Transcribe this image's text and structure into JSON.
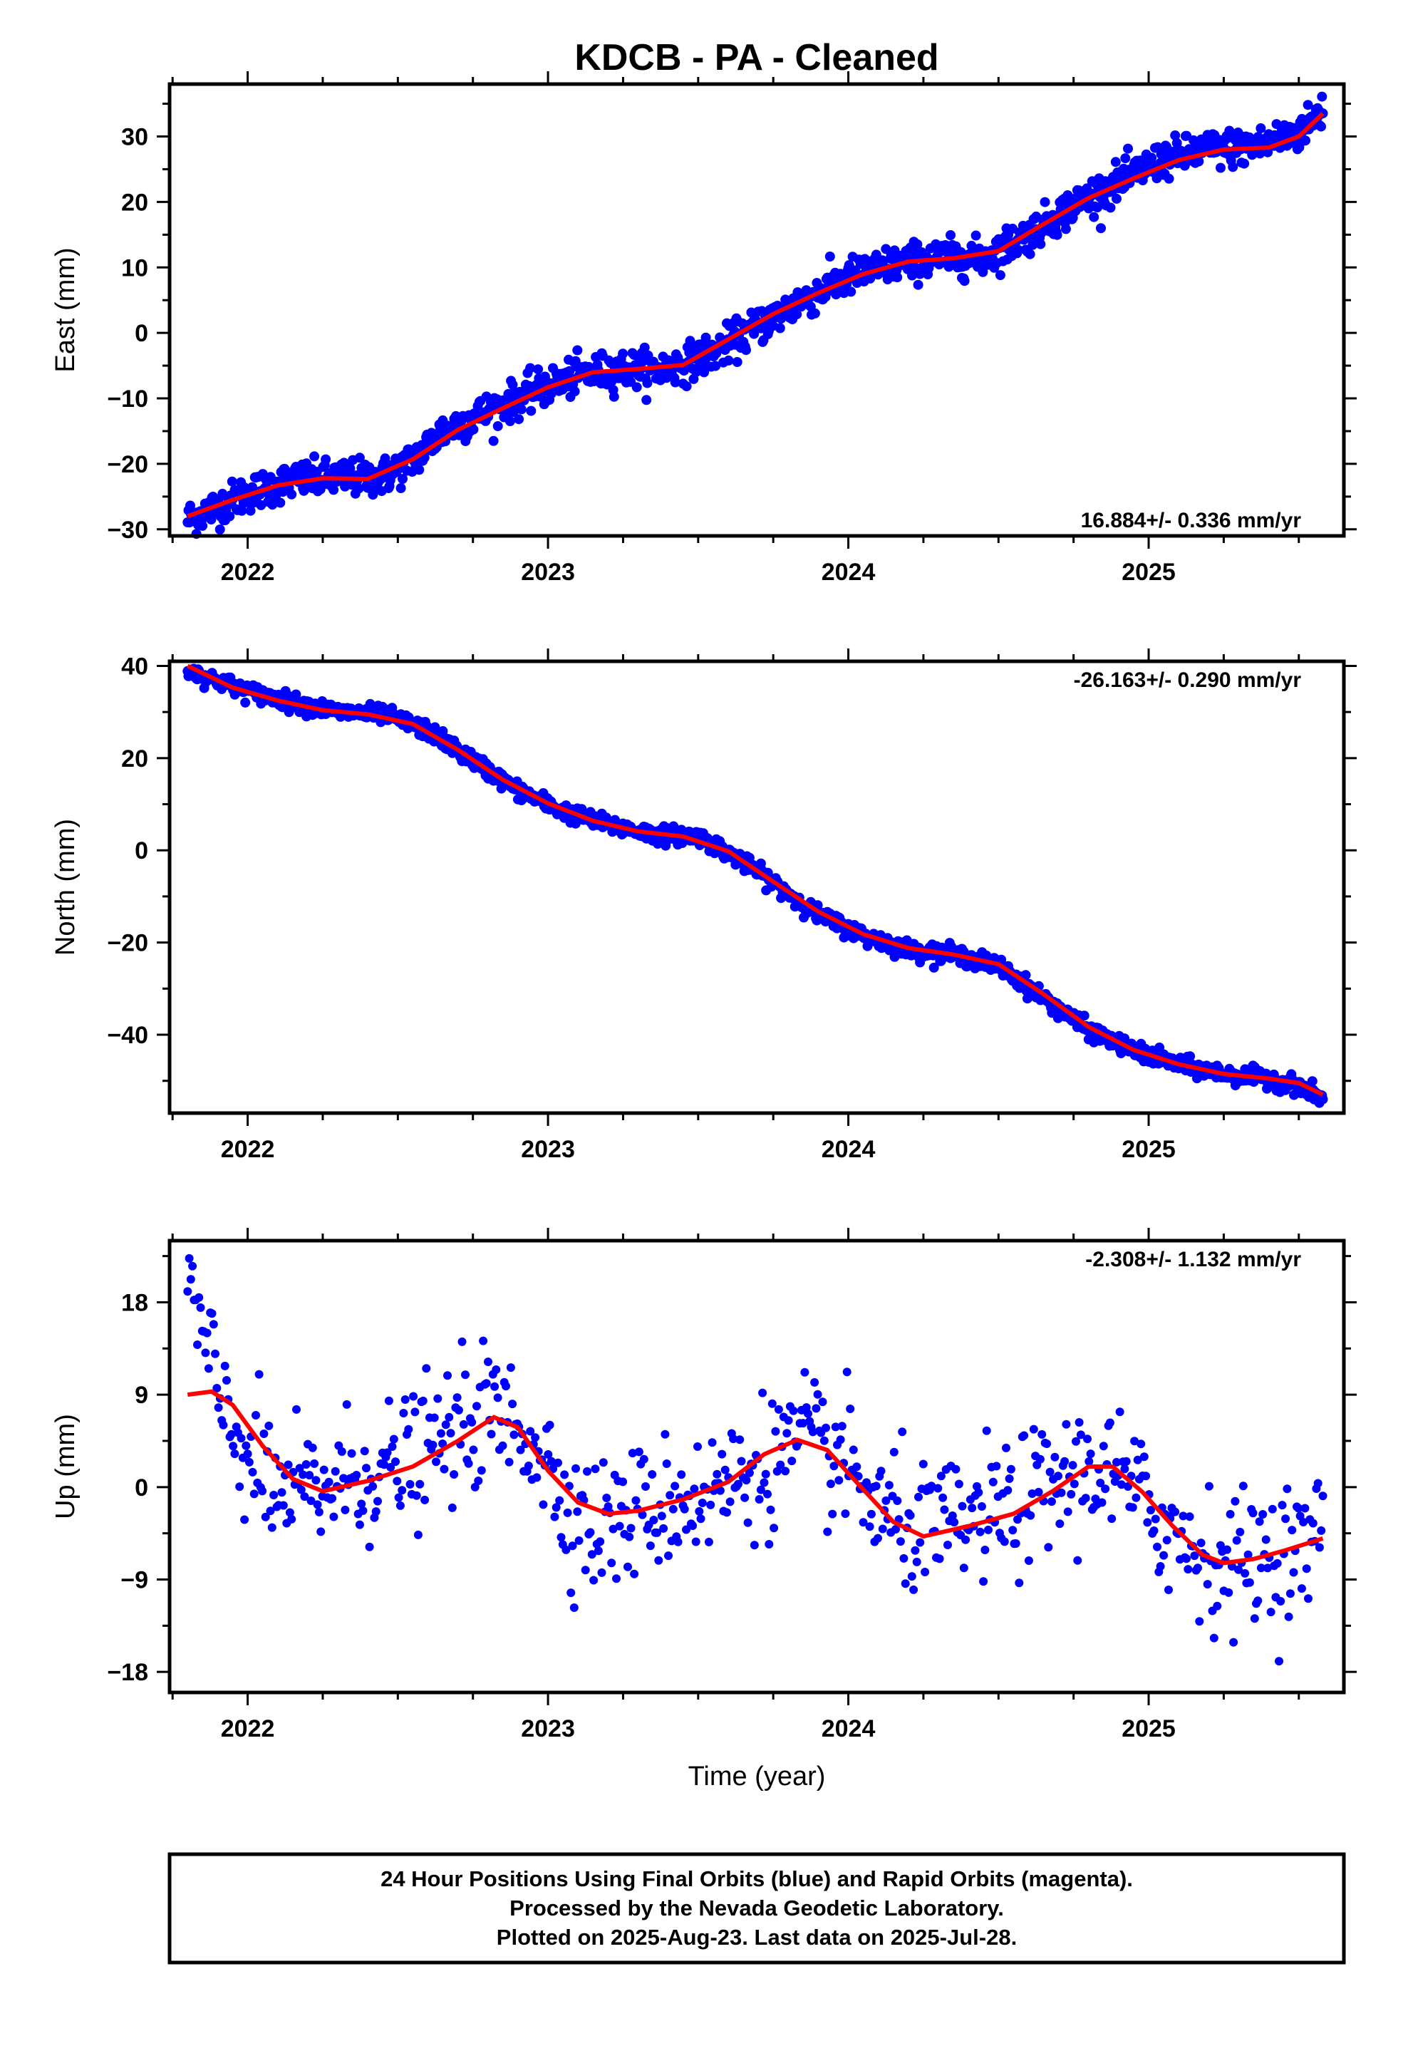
{
  "title": "KDCB  - PA - Cleaned",
  "footer": {
    "lines": [
      "24 Hour Positions Using Final Orbits (blue) and Rapid Orbits (magenta).",
      "Processed by the Nevada Geodetic Laboratory.",
      "Plotted on 2025-Aug-23. Last data on 2025-Jul-28."
    ]
  },
  "colors": {
    "final_orbits": "#0000ff",
    "fit_curve": "#ff0000",
    "axes": "#000000"
  },
  "chart_data": [
    {
      "type": "scatter",
      "component": "east",
      "ylabel": "East (mm)",
      "xlabel": "",
      "xlim": [
        2021.74,
        2025.65
      ],
      "ylim": [
        -31,
        38
      ],
      "xticks": [
        2022,
        2023,
        2024,
        2025
      ],
      "yticks": [
        -30,
        -20,
        -10,
        0,
        10,
        20,
        30
      ],
      "rate_label": "16.884+/- 0.336 mm/yr",
      "rate_position": "bottom-right",
      "noise": 1.4,
      "points": [
        [
          2021.8,
          -28.5
        ],
        [
          2022.0,
          -24.5
        ],
        [
          2022.15,
          -22.5
        ],
        [
          2022.3,
          -22.2
        ],
        [
          2022.45,
          -22.0
        ],
        [
          2022.55,
          -19.5
        ],
        [
          2022.65,
          -15.0
        ],
        [
          2022.8,
          -12.0
        ],
        [
          2022.95,
          -9.0
        ],
        [
          2023.1,
          -6.5
        ],
        [
          2023.25,
          -5.5
        ],
        [
          2023.4,
          -5.5
        ],
        [
          2023.55,
          -3.0
        ],
        [
          2023.7,
          1.0
        ],
        [
          2023.85,
          5.0
        ],
        [
          2024.0,
          8.5
        ],
        [
          2024.15,
          10.5
        ],
        [
          2024.3,
          11.5
        ],
        [
          2024.45,
          11.5
        ],
        [
          2024.6,
          15.0
        ],
        [
          2024.75,
          19.5
        ],
        [
          2024.9,
          23.0
        ],
        [
          2025.05,
          26.5
        ],
        [
          2025.2,
          28.0
        ],
        [
          2025.35,
          28.5
        ],
        [
          2025.5,
          30.5
        ],
        [
          2025.58,
          34.0
        ]
      ],
      "fit": [
        [
          2021.8,
          -28.0
        ],
        [
          2021.95,
          -25.5
        ],
        [
          2022.1,
          -23.3
        ],
        [
          2022.25,
          -22.2
        ],
        [
          2022.4,
          -22.3
        ],
        [
          2022.55,
          -19.3
        ],
        [
          2022.7,
          -14.8
        ],
        [
          2022.85,
          -11.5
        ],
        [
          2023.0,
          -8.3
        ],
        [
          2023.15,
          -6.0
        ],
        [
          2023.3,
          -5.5
        ],
        [
          2023.45,
          -4.9
        ],
        [
          2023.6,
          -1.0
        ],
        [
          2023.75,
          2.9
        ],
        [
          2023.9,
          6.1
        ],
        [
          2024.05,
          9.0
        ],
        [
          2024.2,
          10.9
        ],
        [
          2024.35,
          11.4
        ],
        [
          2024.5,
          12.5
        ],
        [
          2024.65,
          16.6
        ],
        [
          2024.8,
          20.6
        ],
        [
          2024.95,
          23.6
        ],
        [
          2025.1,
          26.4
        ],
        [
          2025.25,
          28.0
        ],
        [
          2025.4,
          28.3
        ],
        [
          2025.5,
          30.0
        ],
        [
          2025.58,
          33.5
        ]
      ]
    },
    {
      "type": "scatter",
      "component": "north",
      "ylabel": "North (mm)",
      "xlabel": "",
      "xlim": [
        2021.74,
        2025.65
      ],
      "ylim": [
        -57,
        41
      ],
      "xticks": [
        2022,
        2023,
        2024,
        2025
      ],
      "yticks": [
        -40,
        -20,
        0,
        20,
        40
      ],
      "rate_label": "-26.163+/- 0.290 mm/yr",
      "rate_position": "top-right",
      "noise": 0.9,
      "points": [
        [
          2021.8,
          39.0
        ],
        [
          2022.0,
          34.5
        ],
        [
          2022.15,
          32.0
        ],
        [
          2022.3,
          30.0
        ],
        [
          2022.45,
          29.5
        ],
        [
          2022.6,
          26.0
        ],
        [
          2022.75,
          19.5
        ],
        [
          2022.9,
          13.0
        ],
        [
          2023.05,
          8.5
        ],
        [
          2023.2,
          5.5
        ],
        [
          2023.35,
          3.5
        ],
        [
          2023.5,
          3.0
        ],
        [
          2023.6,
          -0.5
        ],
        [
          2023.75,
          -7.0
        ],
        [
          2023.9,
          -14.0
        ],
        [
          2024.05,
          -18.5
        ],
        [
          2024.2,
          -21.5
        ],
        [
          2024.35,
          -22.5
        ],
        [
          2024.5,
          -25.0
        ],
        [
          2024.65,
          -32.0
        ],
        [
          2024.8,
          -39.0
        ],
        [
          2024.95,
          -43.5
        ],
        [
          2025.1,
          -46.5
        ],
        [
          2025.25,
          -48.5
        ],
        [
          2025.4,
          -49.5
        ],
        [
          2025.5,
          -51.0
        ],
        [
          2025.58,
          -54.0
        ]
      ],
      "fit": [
        [
          2021.8,
          40.0
        ],
        [
          2021.95,
          35.3
        ],
        [
          2022.1,
          32.5
        ],
        [
          2022.25,
          30.4
        ],
        [
          2022.4,
          29.5
        ],
        [
          2022.55,
          27.4
        ],
        [
          2022.7,
          21.8
        ],
        [
          2022.85,
          15.3
        ],
        [
          2023.0,
          10.2
        ],
        [
          2023.15,
          6.4
        ],
        [
          2023.3,
          4.1
        ],
        [
          2023.45,
          3.0
        ],
        [
          2023.6,
          -0.2
        ],
        [
          2023.75,
          -6.8
        ],
        [
          2023.9,
          -13.3
        ],
        [
          2024.05,
          -18.2
        ],
        [
          2024.2,
          -21.2
        ],
        [
          2024.35,
          -22.6
        ],
        [
          2024.5,
          -24.7
        ],
        [
          2024.65,
          -31.2
        ],
        [
          2024.8,
          -38.3
        ],
        [
          2024.95,
          -43.3
        ],
        [
          2025.1,
          -46.4
        ],
        [
          2025.25,
          -48.5
        ],
        [
          2025.4,
          -49.5
        ],
        [
          2025.5,
          -50.5
        ],
        [
          2025.58,
          -53.0
        ]
      ]
    },
    {
      "type": "scatter",
      "component": "up",
      "ylabel": "Up (mm)",
      "xlabel": "Time (year)",
      "xlim": [
        2021.74,
        2025.65
      ],
      "ylim": [
        -20,
        24
      ],
      "xticks": [
        2022,
        2023,
        2024,
        2025
      ],
      "yticks": [
        -18,
        -9,
        0,
        9,
        18
      ],
      "rate_label": "-2.308+/- 1.132 mm/yr",
      "rate_position": "top-right",
      "noise": 3.2,
      "points": [
        [
          2021.8,
          20.0
        ],
        [
          2021.9,
          9.0
        ],
        [
          2022.0,
          3.0
        ],
        [
          2022.1,
          -1.0
        ],
        [
          2022.2,
          -0.5
        ],
        [
          2022.35,
          1.0
        ],
        [
          2022.5,
          2.0
        ],
        [
          2022.65,
          4.5
        ],
        [
          2022.8,
          7.5
        ],
        [
          2022.95,
          5.0
        ],
        [
          2023.05,
          -1.0
        ],
        [
          2023.15,
          -4.0
        ],
        [
          2023.25,
          -3.0
        ],
        [
          2023.4,
          -1.5
        ],
        [
          2023.55,
          -0.5
        ],
        [
          2023.7,
          2.0
        ],
        [
          2023.85,
          4.5
        ],
        [
          2024.0,
          2.0
        ],
        [
          2024.1,
          -2.5
        ],
        [
          2024.25,
          -4.5
        ],
        [
          2024.4,
          -3.5
        ],
        [
          2024.55,
          -2.0
        ],
        [
          2024.7,
          0.5
        ],
        [
          2024.85,
          2.0
        ],
        [
          2024.95,
          -0.5
        ],
        [
          2025.1,
          -5.0
        ],
        [
          2025.25,
          -7.5
        ],
        [
          2025.4,
          -6.5
        ],
        [
          2025.5,
          -6.0
        ],
        [
          2025.58,
          -5.0
        ]
      ],
      "fit": [
        [
          2021.8,
          9.0
        ],
        [
          2021.88,
          9.3
        ],
        [
          2021.95,
          8.0
        ],
        [
          2022.05,
          4.0
        ],
        [
          2022.15,
          0.8
        ],
        [
          2022.25,
          -0.4
        ],
        [
          2022.4,
          0.6
        ],
        [
          2022.55,
          2.0
        ],
        [
          2022.7,
          4.5
        ],
        [
          2022.82,
          6.8
        ],
        [
          2022.9,
          5.8
        ],
        [
          2023.0,
          1.6
        ],
        [
          2023.1,
          -1.5
        ],
        [
          2023.2,
          -2.6
        ],
        [
          2023.3,
          -2.3
        ],
        [
          2023.45,
          -1.2
        ],
        [
          2023.6,
          0.5
        ],
        [
          2023.72,
          3.2
        ],
        [
          2023.83,
          4.6
        ],
        [
          2023.93,
          3.6
        ],
        [
          2024.03,
          0.4
        ],
        [
          2024.15,
          -3.4
        ],
        [
          2024.25,
          -4.8
        ],
        [
          2024.4,
          -3.8
        ],
        [
          2024.55,
          -2.6
        ],
        [
          2024.68,
          -0.4
        ],
        [
          2024.8,
          2.0
        ],
        [
          2024.88,
          2.0
        ],
        [
          2024.98,
          -0.5
        ],
        [
          2025.08,
          -3.8
        ],
        [
          2025.18,
          -6.6
        ],
        [
          2025.25,
          -7.4
        ],
        [
          2025.35,
          -7.0
        ],
        [
          2025.45,
          -6.2
        ],
        [
          2025.58,
          -5.0
        ]
      ]
    }
  ]
}
